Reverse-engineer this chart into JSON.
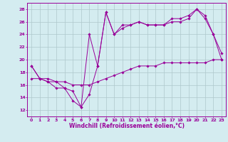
{
  "xlabel": "Windchill (Refroidissement éolien,°C)",
  "bg_color": "#d4ecf0",
  "line_color": "#990099",
  "grid_color": "#aec8cc",
  "xlim": [
    -0.5,
    23.5
  ],
  "ylim": [
    11,
    29
  ],
  "yticks": [
    12,
    14,
    16,
    18,
    20,
    22,
    24,
    26,
    28
  ],
  "xticks": [
    0,
    1,
    2,
    3,
    4,
    5,
    6,
    7,
    8,
    9,
    10,
    11,
    12,
    13,
    14,
    15,
    16,
    17,
    18,
    19,
    20,
    21,
    22,
    23
  ],
  "series": [
    {
      "x": [
        0,
        1,
        2,
        3,
        4,
        5,
        6,
        7,
        8,
        9,
        10,
        11,
        12,
        13,
        14,
        15,
        16,
        17,
        18,
        19,
        20,
        21,
        22,
        23
      ],
      "y": [
        19.0,
        17.0,
        17.0,
        16.5,
        15.5,
        15.0,
        12.5,
        24.0,
        19.0,
        27.5,
        24.0,
        25.5,
        25.5,
        26.0,
        25.5,
        25.5,
        25.5,
        26.5,
        26.5,
        27.0,
        28.0,
        27.0,
        24.0,
        21.0
      ]
    },
    {
      "x": [
        0,
        1,
        2,
        3,
        4,
        5,
        6,
        7,
        8,
        9,
        10,
        11,
        12,
        13,
        14,
        15,
        16,
        17,
        18,
        19,
        20,
        21,
        22,
        23
      ],
      "y": [
        19.0,
        17.0,
        16.5,
        15.5,
        15.5,
        13.5,
        12.5,
        14.5,
        19.0,
        27.5,
        24.0,
        25.0,
        25.5,
        26.0,
        25.5,
        25.5,
        25.5,
        26.0,
        26.0,
        26.5,
        28.0,
        26.5,
        24.0,
        20.0
      ]
    },
    {
      "x": [
        0,
        1,
        2,
        3,
        4,
        5,
        6,
        7,
        8,
        9,
        10,
        11,
        12,
        13,
        14,
        15,
        16,
        17,
        18,
        19,
        20,
        21,
        22,
        23
      ],
      "y": [
        17.0,
        17.0,
        16.5,
        16.5,
        16.5,
        16.0,
        16.0,
        16.0,
        16.5,
        17.0,
        17.5,
        18.0,
        18.5,
        19.0,
        19.0,
        19.0,
        19.5,
        19.5,
        19.5,
        19.5,
        19.5,
        19.5,
        20.0,
        20.0
      ]
    }
  ]
}
